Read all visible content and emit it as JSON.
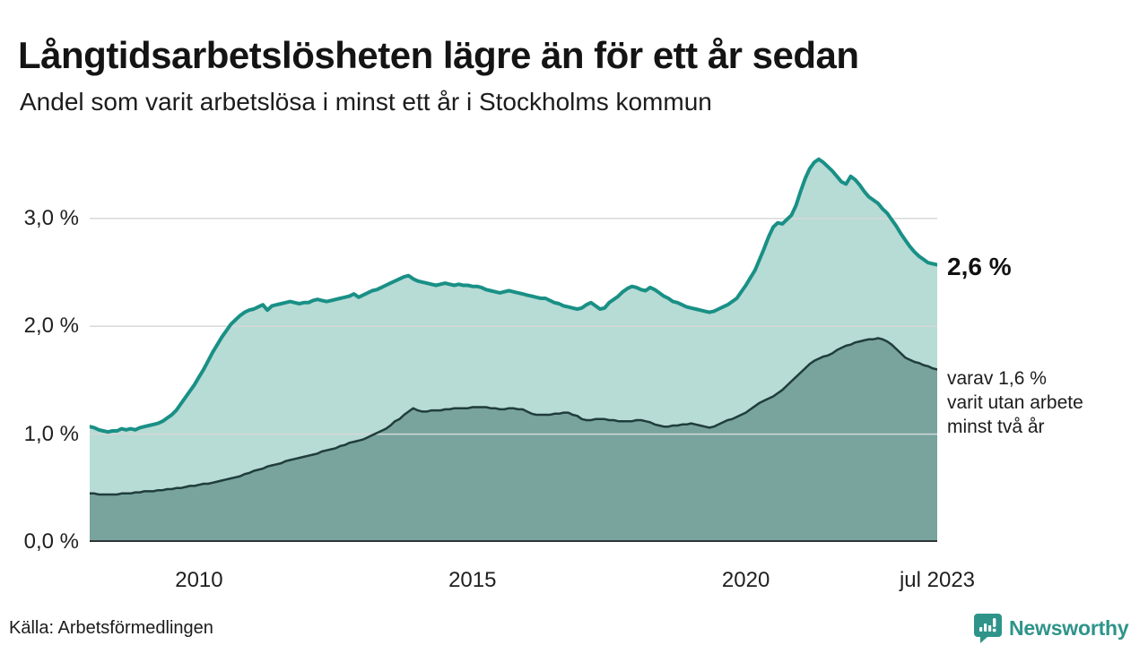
{
  "header": {
    "title": "Långtidsarbetslösheten lägre än för ett år sedan",
    "subtitle": "Andel som varit arbetslösa i minst ett år i Stockholms kommun"
  },
  "annotations": {
    "series1_end_label": "2,6 %",
    "series2_lines": [
      "varav 1,6 %",
      "varit utan arbete",
      "minst två år"
    ]
  },
  "footer": {
    "source": "Källa: Arbetsförmedlingen",
    "brand": "Newsworthy",
    "brand_color": "#2e948a"
  },
  "chart_data": {
    "type": "area",
    "title": "Långtidsarbetslösheten lägre än för ett år sedan",
    "subtitle": "Andel som varit arbetslösa i minst ett år i Stockholms kommun",
    "x_unit": "year (monthly points)",
    "x_start": 2008.0,
    "points_per_year": 12,
    "x_range": [
      2008.0,
      2023.5
    ],
    "ylim": [
      0,
      3.78
    ],
    "grid": true,
    "axis_color": "#2f3437",
    "grid_color": "#d6d9d8",
    "yticks": [
      {
        "value": 0,
        "label": "0,0 %"
      },
      {
        "value": 1,
        "label": "1,0 %"
      },
      {
        "value": 2,
        "label": "2,0 %"
      },
      {
        "value": 3,
        "label": "3,0 %"
      }
    ],
    "xticks": [
      {
        "value": 2010,
        "label": "2010"
      },
      {
        "value": 2015,
        "label": "2015"
      },
      {
        "value": 2020,
        "label": "2020"
      },
      {
        "value": 2023.5,
        "label": "jul 2023"
      }
    ],
    "series": [
      {
        "name": "Andel arbetslösa minst ett år",
        "end_label": "2,6 %",
        "line_color": "#199086",
        "fill_color": "#b7dbd5",
        "line_width": 4,
        "values": [
          1.07,
          1.06,
          1.04,
          1.03,
          1.02,
          1.03,
          1.03,
          1.05,
          1.04,
          1.05,
          1.04,
          1.06,
          1.07,
          1.08,
          1.09,
          1.1,
          1.12,
          1.15,
          1.18,
          1.22,
          1.28,
          1.34,
          1.4,
          1.46,
          1.53,
          1.6,
          1.68,
          1.76,
          1.83,
          1.9,
          1.96,
          2.02,
          2.06,
          2.1,
          2.13,
          2.15,
          2.16,
          2.18,
          2.2,
          2.15,
          2.19,
          2.2,
          2.21,
          2.22,
          2.23,
          2.22,
          2.21,
          2.22,
          2.22,
          2.24,
          2.25,
          2.24,
          2.23,
          2.24,
          2.25,
          2.26,
          2.27,
          2.28,
          2.3,
          2.27,
          2.29,
          2.31,
          2.33,
          2.34,
          2.36,
          2.38,
          2.4,
          2.42,
          2.44,
          2.46,
          2.47,
          2.44,
          2.42,
          2.41,
          2.4,
          2.39,
          2.38,
          2.39,
          2.4,
          2.39,
          2.38,
          2.39,
          2.38,
          2.38,
          2.37,
          2.37,
          2.36,
          2.34,
          2.33,
          2.32,
          2.31,
          2.32,
          2.33,
          2.32,
          2.31,
          2.3,
          2.29,
          2.28,
          2.27,
          2.26,
          2.26,
          2.24,
          2.22,
          2.21,
          2.19,
          2.18,
          2.17,
          2.16,
          2.17,
          2.2,
          2.22,
          2.19,
          2.16,
          2.17,
          2.22,
          2.25,
          2.28,
          2.32,
          2.35,
          2.37,
          2.36,
          2.34,
          2.33,
          2.36,
          2.34,
          2.31,
          2.28,
          2.26,
          2.23,
          2.22,
          2.2,
          2.18,
          2.17,
          2.16,
          2.15,
          2.14,
          2.13,
          2.14,
          2.16,
          2.18,
          2.2,
          2.23,
          2.26,
          2.32,
          2.38,
          2.45,
          2.52,
          2.62,
          2.72,
          2.83,
          2.92,
          2.96,
          2.95,
          2.99,
          3.03,
          3.12,
          3.25,
          3.37,
          3.46,
          3.52,
          3.55,
          3.52,
          3.48,
          3.44,
          3.39,
          3.34,
          3.32,
          3.39,
          3.36,
          3.31,
          3.25,
          3.2,
          3.17,
          3.14,
          3.09,
          3.05,
          2.99,
          2.93,
          2.86,
          2.8,
          2.74,
          2.69,
          2.65,
          2.62,
          2.59,
          2.58,
          2.57
        ]
      },
      {
        "name": "Andel arbetslösa minst två år",
        "end_label": "1,6 %",
        "line_color": "#203d3c",
        "fill_color": "#78a49d",
        "line_width": 2.5,
        "values": [
          0.45,
          0.45,
          0.44,
          0.44,
          0.44,
          0.44,
          0.44,
          0.45,
          0.45,
          0.45,
          0.46,
          0.46,
          0.47,
          0.47,
          0.47,
          0.48,
          0.48,
          0.49,
          0.49,
          0.5,
          0.5,
          0.51,
          0.52,
          0.52,
          0.53,
          0.54,
          0.54,
          0.55,
          0.56,
          0.57,
          0.58,
          0.59,
          0.6,
          0.61,
          0.63,
          0.64,
          0.66,
          0.67,
          0.68,
          0.7,
          0.71,
          0.72,
          0.73,
          0.75,
          0.76,
          0.77,
          0.78,
          0.79,
          0.8,
          0.81,
          0.82,
          0.84,
          0.85,
          0.86,
          0.87,
          0.89,
          0.9,
          0.92,
          0.93,
          0.94,
          0.95,
          0.97,
          0.99,
          1.01,
          1.03,
          1.05,
          1.08,
          1.12,
          1.14,
          1.18,
          1.21,
          1.24,
          1.22,
          1.21,
          1.21,
          1.22,
          1.22,
          1.22,
          1.23,
          1.23,
          1.24,
          1.24,
          1.24,
          1.24,
          1.25,
          1.25,
          1.25,
          1.25,
          1.24,
          1.24,
          1.23,
          1.23,
          1.24,
          1.24,
          1.23,
          1.23,
          1.21,
          1.19,
          1.18,
          1.18,
          1.18,
          1.18,
          1.19,
          1.19,
          1.2,
          1.2,
          1.18,
          1.17,
          1.14,
          1.13,
          1.13,
          1.14,
          1.14,
          1.14,
          1.13,
          1.13,
          1.12,
          1.12,
          1.12,
          1.12,
          1.13,
          1.13,
          1.12,
          1.11,
          1.09,
          1.08,
          1.07,
          1.07,
          1.08,
          1.08,
          1.09,
          1.09,
          1.1,
          1.09,
          1.08,
          1.07,
          1.06,
          1.07,
          1.09,
          1.11,
          1.13,
          1.14,
          1.16,
          1.18,
          1.2,
          1.23,
          1.26,
          1.29,
          1.31,
          1.33,
          1.35,
          1.38,
          1.41,
          1.45,
          1.49,
          1.53,
          1.57,
          1.61,
          1.65,
          1.68,
          1.7,
          1.72,
          1.73,
          1.75,
          1.78,
          1.8,
          1.82,
          1.83,
          1.85,
          1.86,
          1.87,
          1.88,
          1.88,
          1.89,
          1.88,
          1.86,
          1.83,
          1.79,
          1.75,
          1.71,
          1.69,
          1.67,
          1.66,
          1.64,
          1.63,
          1.61,
          1.6
        ]
      }
    ]
  }
}
